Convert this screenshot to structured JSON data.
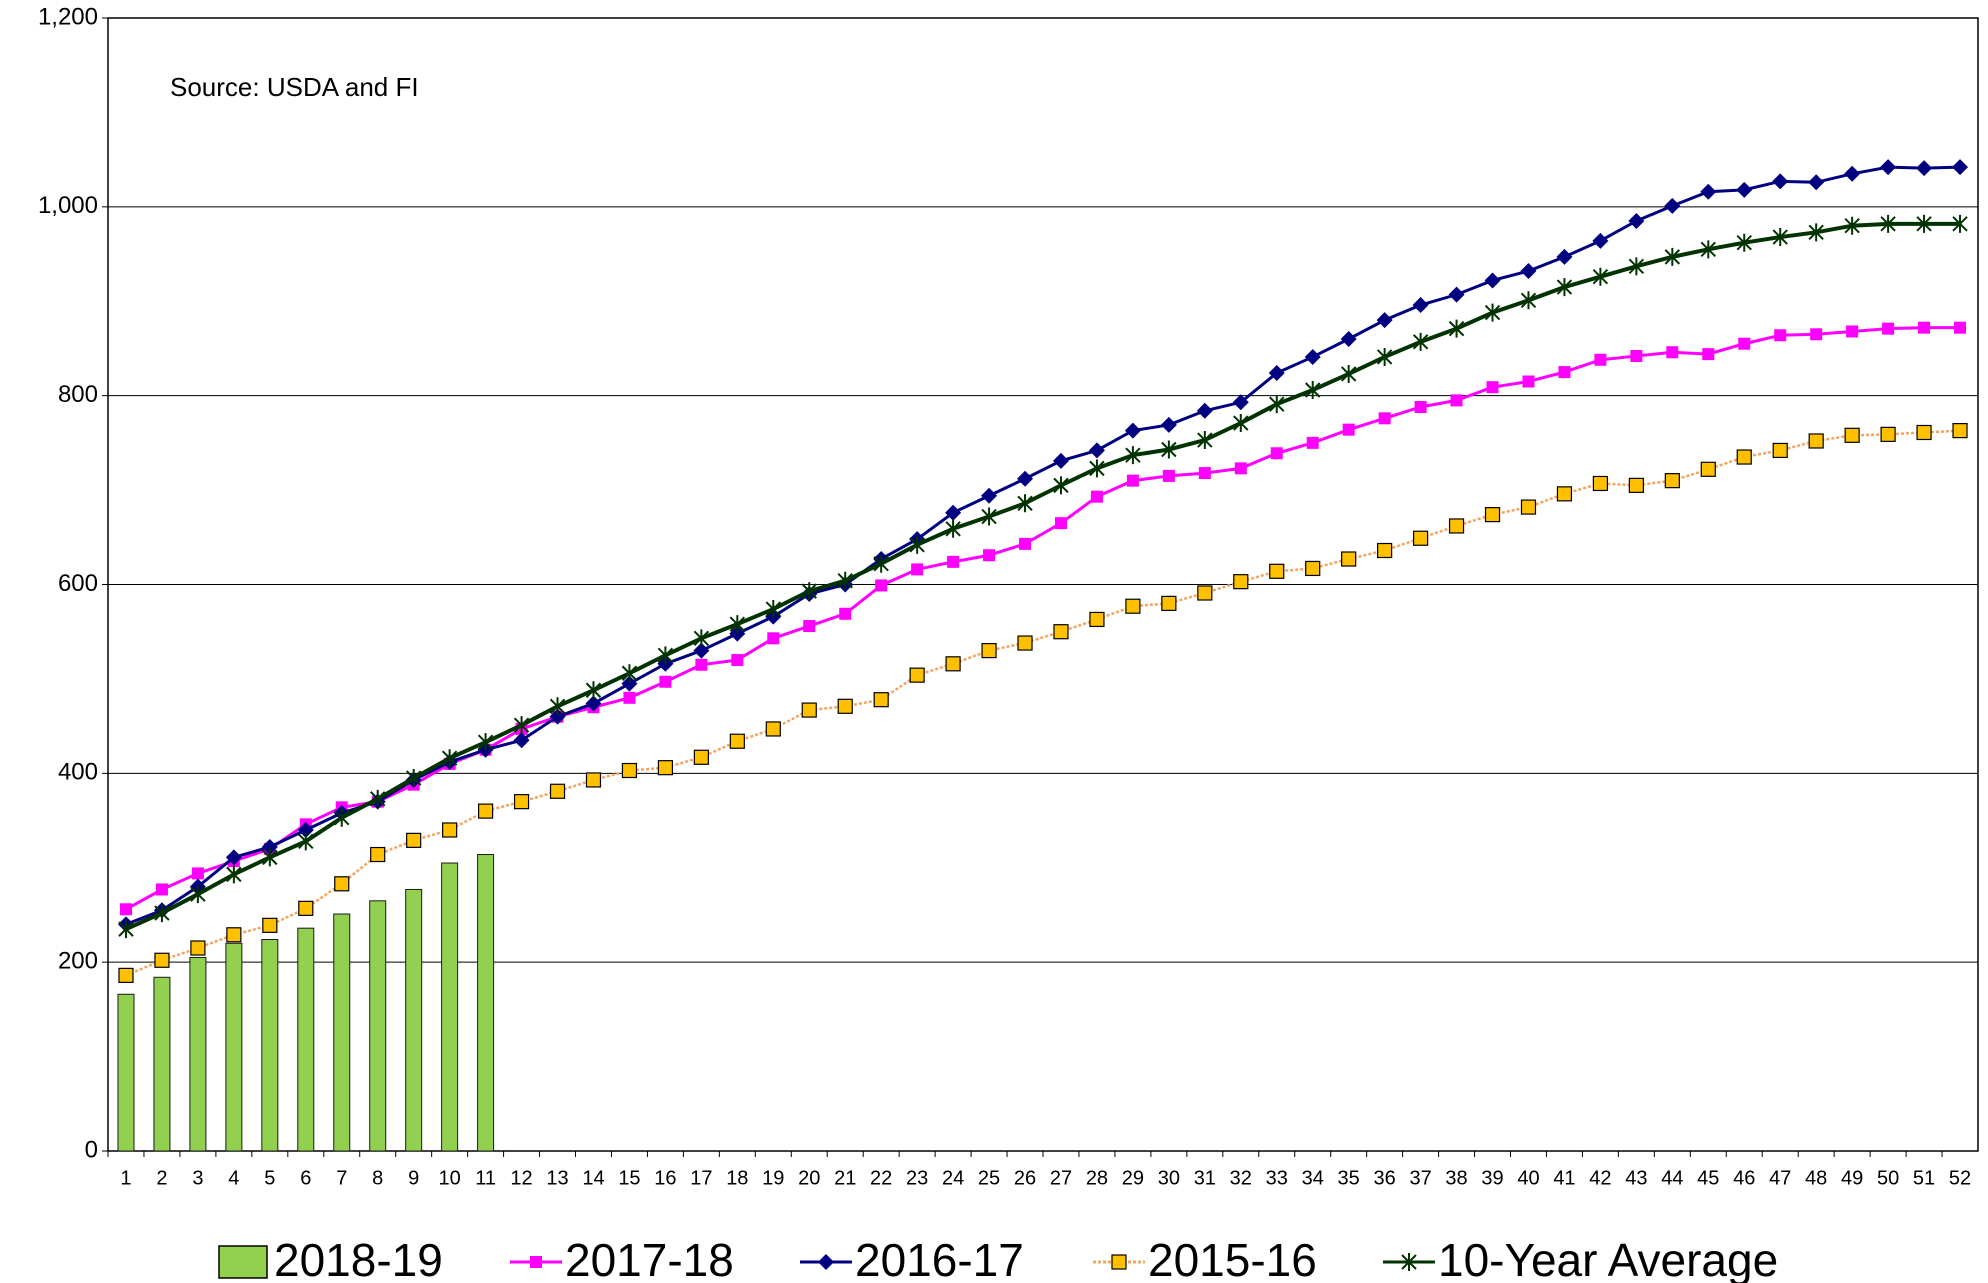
{
  "chart_data": {
    "type": "combo",
    "annotation": "Source: USDA and FI",
    "categories": [
      "1",
      "2",
      "3",
      "4",
      "5",
      "6",
      "7",
      "8",
      "9",
      "10",
      "11",
      "12",
      "13",
      "14",
      "15",
      "16",
      "17",
      "18",
      "19",
      "20",
      "21",
      "22",
      "23",
      "24",
      "25",
      "26",
      "27",
      "28",
      "29",
      "30",
      "31",
      "32",
      "33",
      "34",
      "35",
      "36",
      "37",
      "38",
      "39",
      "40",
      "41",
      "42",
      "43",
      "44",
      "45",
      "46",
      "47",
      "48",
      "49",
      "50",
      "51",
      "52"
    ],
    "ylim": [
      0,
      1200
    ],
    "yticks": [
      0,
      200,
      400,
      600,
      800,
      {
        "value": 1000,
        "label": "1,000"
      },
      {
        "value": 1200,
        "label": "1,200"
      }
    ],
    "grid": true,
    "legend": "bottom",
    "series": [
      {
        "name": "2018-19",
        "type": "bar",
        "color": "#92d050",
        "values": [
          166,
          184,
          205,
          220,
          224,
          236,
          251,
          265,
          277,
          305,
          314,
          null,
          null,
          null,
          null,
          null,
          null,
          null,
          null,
          null,
          null,
          null,
          null,
          null,
          null,
          null,
          null,
          null,
          null,
          null,
          null,
          null,
          null,
          null,
          null,
          null,
          null,
          null,
          null,
          null,
          null,
          null,
          null,
          null,
          null,
          null,
          null,
          null,
          null,
          null,
          null,
          null
        ]
      },
      {
        "name": "2017-18",
        "type": "line",
        "marker": "square",
        "color": "#ff00ff",
        "values": [
          256,
          277,
          294,
          307,
          320,
          346,
          364,
          370,
          388,
          410,
          425,
          447,
          460,
          470,
          480,
          497,
          515,
          520,
          543,
          556,
          569,
          599,
          616,
          624,
          631,
          643,
          665,
          693,
          710,
          715,
          718,
          723,
          739,
          750,
          764,
          776,
          788,
          795,
          809,
          815,
          825,
          838,
          842,
          846,
          844,
          855,
          864,
          865,
          868,
          871,
          872,
          872
        ]
      },
      {
        "name": "2016-17",
        "type": "line",
        "marker": "diamond",
        "color": "#000080",
        "values": [
          240,
          255,
          280,
          311,
          322,
          340,
          358,
          370,
          393,
          412,
          425,
          435,
          460,
          474,
          495,
          516,
          530,
          548,
          566,
          590,
          600,
          627,
          648,
          676,
          694,
          712,
          731,
          742,
          763,
          769,
          784,
          793,
          824,
          841,
          860,
          880,
          896,
          907,
          922,
          932,
          947,
          964,
          985,
          1001,
          1016,
          1018,
          1027,
          1026,
          1035,
          1042,
          1041,
          1042
        ]
      },
      {
        "name": "2015-16",
        "type": "line",
        "marker": "square-outlined",
        "dashed": true,
        "color": "#ffc000",
        "values": [
          186,
          202,
          215,
          229,
          239,
          257,
          283,
          314,
          329,
          340,
          360,
          370,
          381,
          393,
          403,
          406,
          417,
          434,
          447,
          467,
          471,
          478,
          504,
          516,
          530,
          538,
          550,
          563,
          577,
          580,
          591,
          603,
          614,
          617,
          627,
          636,
          649,
          662,
          674,
          682,
          696,
          707,
          705,
          710,
          722,
          735,
          742,
          752,
          758,
          759,
          761,
          763
        ]
      },
      {
        "name": "10-Year Average",
        "type": "line",
        "marker": "asterisk",
        "color": "#003300",
        "values": [
          235,
          252,
          272,
          293,
          311,
          328,
          353,
          373,
          395,
          416,
          433,
          451,
          471,
          488,
          506,
          525,
          543,
          558,
          574,
          593,
          604,
          622,
          642,
          659,
          672,
          686,
          705,
          723,
          737,
          743,
          753,
          771,
          791,
          806,
          823,
          841,
          857,
          871,
          888,
          901,
          915,
          926,
          937,
          947,
          955,
          962,
          968,
          973,
          980,
          982,
          982,
          982
        ]
      }
    ]
  }
}
